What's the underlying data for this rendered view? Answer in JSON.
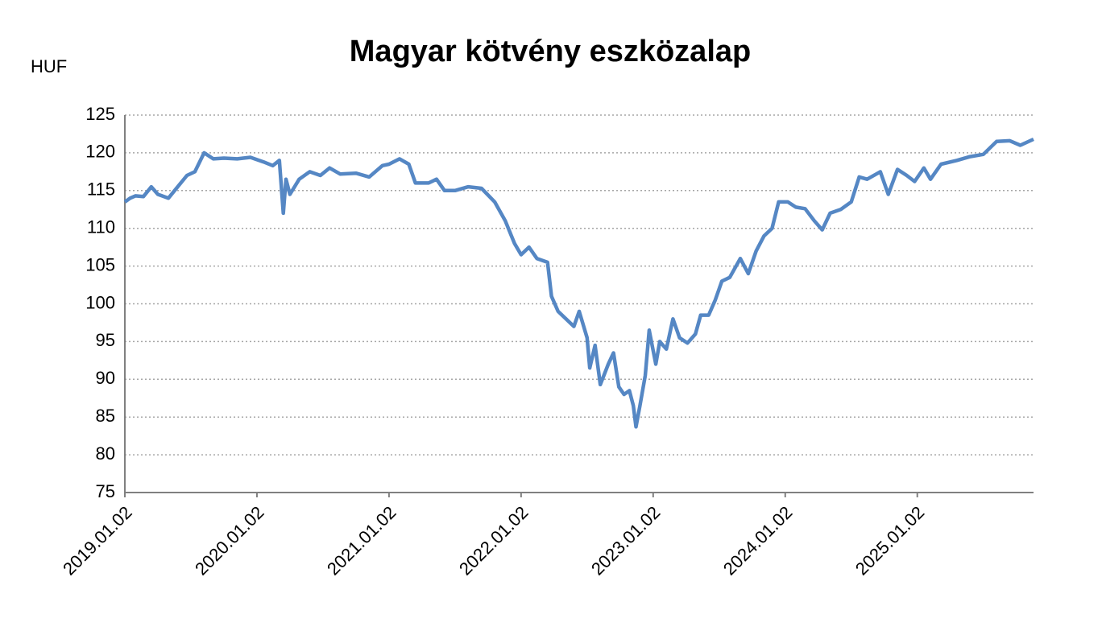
{
  "chart_data": {
    "type": "line",
    "title": "Magyar kötvény eszközalap",
    "y_label": "HUF",
    "series": [
      {
        "name": "Magyar kötvény eszközalap",
        "color": "#5587c4",
        "x": [
          2019.0,
          2019.04,
          2019.08,
          2019.14,
          2019.2,
          2019.25,
          2019.33,
          2019.4,
          2019.47,
          2019.53,
          2019.6,
          2019.67,
          2019.75,
          2019.85,
          2019.95,
          2020.05,
          2020.12,
          2020.17,
          2020.2,
          2020.22,
          2020.25,
          2020.32,
          2020.4,
          2020.48,
          2020.55,
          2020.63,
          2020.75,
          2020.85,
          2020.95,
          2021.0,
          2021.08,
          2021.15,
          2021.2,
          2021.3,
          2021.36,
          2021.42,
          2021.5,
          2021.6,
          2021.7,
          2021.8,
          2021.88,
          2021.95,
          2022.0,
          2022.06,
          2022.12,
          2022.2,
          2022.23,
          2022.28,
          2022.34,
          2022.4,
          2022.44,
          2022.5,
          2022.52,
          2022.56,
          2022.6,
          2022.66,
          2022.7,
          2022.74,
          2022.78,
          2022.82,
          2022.85,
          2022.87,
          2022.9,
          2022.94,
          2022.97,
          2023.02,
          2023.05,
          2023.1,
          2023.15,
          2023.2,
          2023.26,
          2023.32,
          2023.36,
          2023.42,
          2023.47,
          2023.52,
          2023.58,
          2023.66,
          2023.72,
          2023.78,
          2023.84,
          2023.9,
          2023.95,
          2024.02,
          2024.08,
          2024.15,
          2024.22,
          2024.28,
          2024.34,
          2024.42,
          2024.5,
          2024.56,
          2024.62,
          2024.72,
          2024.78,
          2024.85,
          2024.92,
          2024.98,
          2025.05,
          2025.1,
          2025.18,
          2025.3,
          2025.4,
          2025.5,
          2025.6,
          2025.7,
          2025.78,
          2025.88
        ],
        "values": [
          113.5,
          114,
          114.3,
          114.2,
          115.5,
          114.5,
          114,
          115.5,
          117,
          117.5,
          120,
          119.2,
          119.3,
          119.2,
          119.4,
          118.8,
          118.3,
          119,
          112,
          116.5,
          114.5,
          116.5,
          117.5,
          117,
          118,
          117.2,
          117.3,
          116.8,
          118.3,
          118.5,
          119.2,
          118.5,
          116,
          116,
          116.5,
          115,
          115,
          115.5,
          115.3,
          113.5,
          111,
          108,
          106.5,
          107.5,
          106,
          105.5,
          101,
          99,
          98,
          97,
          99,
          95.5,
          91.5,
          94.5,
          89.3,
          92,
          93.5,
          89,
          88,
          88.5,
          86.5,
          83.7,
          86.5,
          90.5,
          96.5,
          92,
          95,
          94,
          98,
          95.5,
          94.8,
          96,
          98.5,
          98.5,
          100.5,
          103,
          103.5,
          106,
          104,
          107,
          109,
          110,
          113.5,
          113.5,
          112.8,
          112.6,
          111,
          109.8,
          112,
          112.5,
          113.5,
          116.8,
          116.5,
          117.5,
          114.5,
          117.8,
          117,
          116.2,
          118,
          116.5,
          118.5,
          119,
          119.5,
          119.8,
          121.5,
          121.6,
          121,
          121.8
        ]
      }
    ],
    "xlim": [
      2019.0,
      2025.88
    ],
    "xticks": [
      {
        "value": 2019.0,
        "label": "2019.01.02"
      },
      {
        "value": 2020.0,
        "label": "2020.01.02"
      },
      {
        "value": 2021.0,
        "label": "2021.01.02"
      },
      {
        "value": 2022.0,
        "label": "2022.01.02"
      },
      {
        "value": 2023.0,
        "label": "2023.01.02"
      },
      {
        "value": 2024.0,
        "label": "2024.01.02"
      },
      {
        "value": 2025.0,
        "label": "2025.01.02"
      }
    ],
    "ylim": [
      75,
      125
    ],
    "yticks": [
      75,
      80,
      85,
      90,
      95,
      100,
      105,
      110,
      115,
      120,
      125
    ],
    "grid": true
  }
}
